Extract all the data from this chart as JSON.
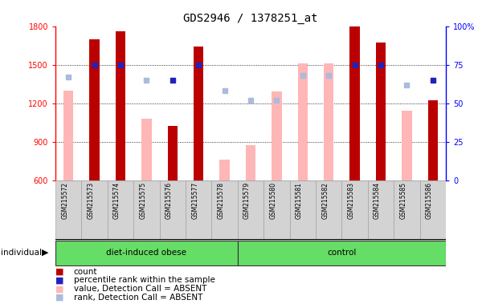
{
  "title": "GDS2946 / 1378251_at",
  "samples": [
    "GSM215572",
    "GSM215573",
    "GSM215574",
    "GSM215575",
    "GSM215576",
    "GSM215577",
    "GSM215578",
    "GSM215579",
    "GSM215580",
    "GSM215581",
    "GSM215582",
    "GSM215583",
    "GSM215584",
    "GSM215585",
    "GSM215586"
  ],
  "groups": [
    {
      "label": "diet-induced obese",
      "start": 0,
      "end": 7
    },
    {
      "label": "control",
      "start": 7,
      "end": 15
    }
  ],
  "count_values": [
    null,
    1700,
    1760,
    null,
    1020,
    1640,
    null,
    null,
    null,
    null,
    null,
    1800,
    1670,
    null,
    1220
  ],
  "absent_value_values": [
    1300,
    null,
    null,
    1080,
    null,
    null,
    760,
    870,
    1290,
    1510,
    1510,
    null,
    null,
    1140,
    null
  ],
  "percentile_rank_present": [
    null,
    75,
    75,
    null,
    65,
    75,
    null,
    null,
    null,
    null,
    null,
    75,
    75,
    null,
    65
  ],
  "percentile_rank_absent": [
    67,
    null,
    null,
    65,
    null,
    null,
    58,
    52,
    52,
    68,
    68,
    null,
    null,
    62,
    null
  ],
  "ylim_left": [
    600,
    1800
  ],
  "ylim_right": [
    0,
    100
  ],
  "yticks_left": [
    600,
    900,
    1200,
    1500,
    1800
  ],
  "yticks_right": [
    0,
    25,
    50,
    75,
    100
  ],
  "count_color": "#bb0000",
  "absent_value_color": "#ffb6b6",
  "rank_present_color": "#2222bb",
  "rank_absent_color": "#aabbdd",
  "legend_items": [
    {
      "color": "#bb0000",
      "label": "count"
    },
    {
      "color": "#2222bb",
      "label": "percentile rank within the sample"
    },
    {
      "color": "#ffb6b6",
      "label": "value, Detection Call = ABSENT"
    },
    {
      "color": "#aabbdd",
      "label": "rank, Detection Call = ABSENT"
    }
  ]
}
